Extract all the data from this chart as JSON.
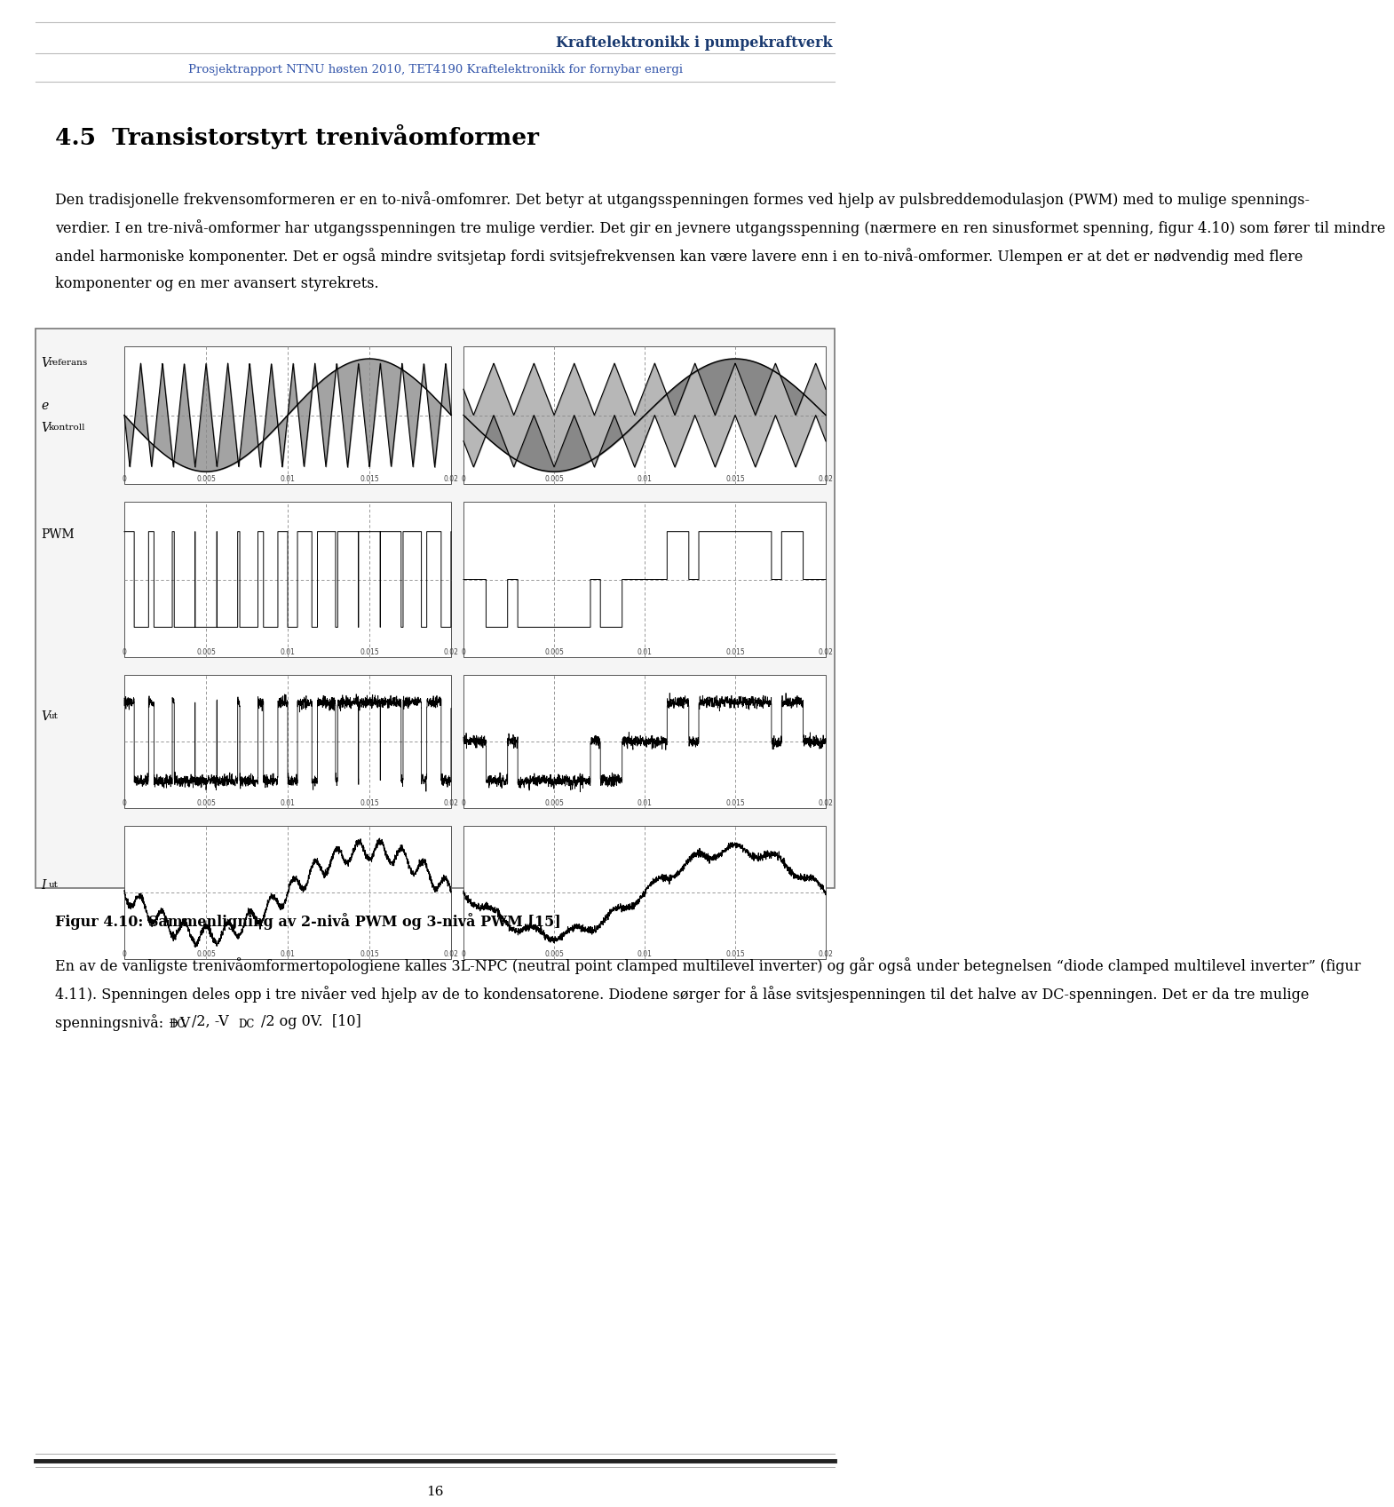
{
  "header_title": "Kraftelektronikk i pumpekraftverk",
  "header_subtitle": "Prosjektrapport NTNU høsten 2010, TET4190 Kraftelektronikk for fornybar energi",
  "section_title": "4.5  Transistorstyrt trenivåomformer",
  "p1_line1": "Den tradisjonelle frekvensomformeren er en to-nivå-omfomrer. Det betyr at utgangsspenningen formes ved hjelp av pulsbreddemodulasjon (PWM) med to mulige spennings-",
  "p1_line2": "verdier. I en tre-nivå-omformer har utgangsspenningen tre mulige verdier. Det gir en jevnere utgangsspenning (nærmere en ren sinusformet spenning, figur 4.10) som fører til mindre",
  "p1_line3": "andel harmoniske komponenter. Det er også mindre svitsjetap fordi svitsjefrekvensen kan være lavere enn i en to-nivå-omformer. Ulempen er at det er nødvendig med flere",
  "p1_line4": "komponenter og en mer avansert styrekrets.",
  "figure_caption": "Figur 4.10: Sammenligning av 2-nivå PWM og 3-nivå PWM [15]",
  "p2_line1": "En av de vanligste trenivåomformertopologiene kalles 3L-NPC (neutral point clamped multilevel inverter) og går også under betegnelsen “diode clamped multilevel inverter” (figur",
  "p2_line2": "4.11). Spenningen deles opp i tre nivåer ved hjelp av de to kondensatorene. Diodene sørger for å låse svitsjespenningen til det halve av DC-spenningen. Det er da tre mulige",
  "p2_line3_a": "spenningsnivå: +V",
  "p2_line3_sub1": "DC",
  "p2_line3_b": "/2, -V",
  "p2_line3_sub2": "DC",
  "p2_line3_c": "/2 og 0V.  [10]",
  "page_number": "16",
  "bg_color": "#ffffff",
  "text_color": "#000000",
  "header_title_color": "#1a3a70",
  "header_subtitle_color": "#3355aa",
  "header_line_color": "#bbbbbb",
  "figure_outer_bg": "#f5f5f5",
  "figure_panel_bg": "#e8e8e8",
  "figure_border": "#777777",
  "waveform_color": "#111111",
  "tick_color": "#444444",
  "dashed_color": "#888888",
  "footer_thick_color": "#222222",
  "footer_thin_color": "#aaaaaa"
}
